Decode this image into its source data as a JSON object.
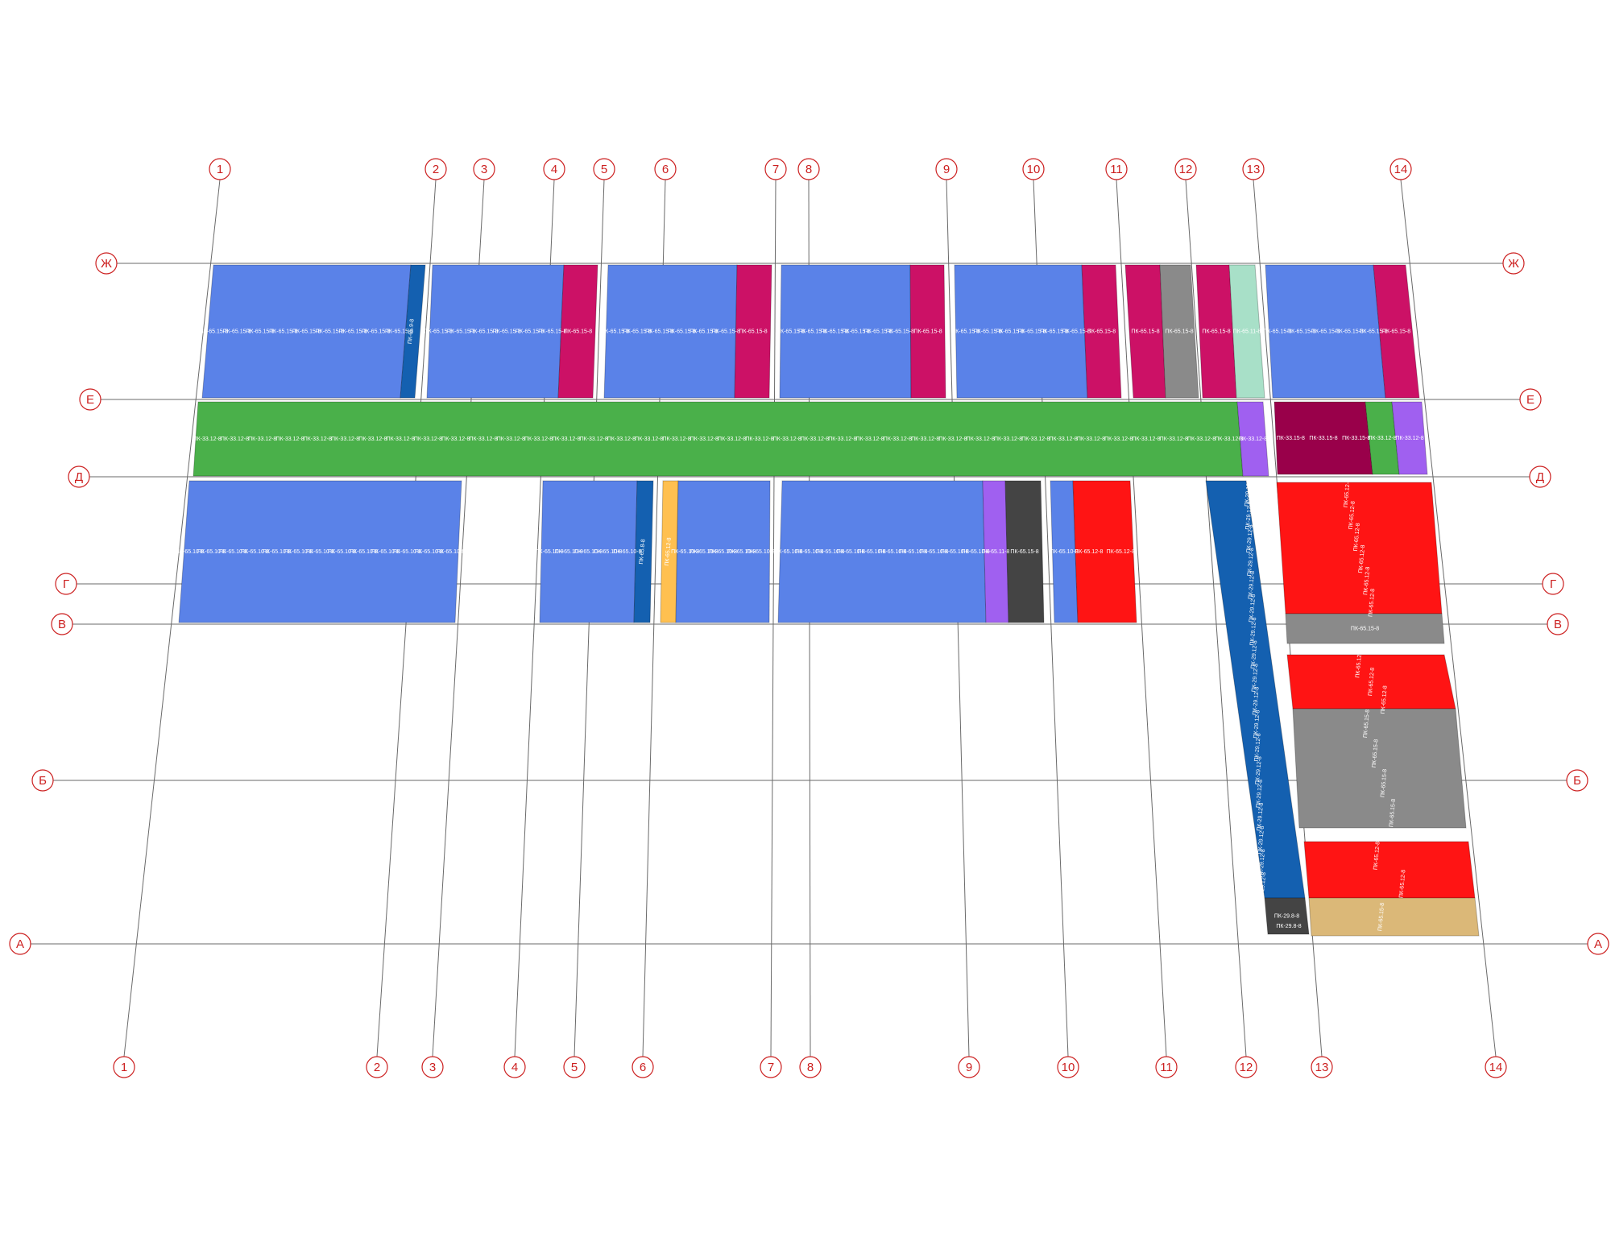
{
  "colors": {
    "grid_line": "#6a6a6a",
    "axis_marker_stroke": "#cc1f1f",
    "blue_panel": "#5a82e8",
    "dark_blue_panel": "#1460b0",
    "magenta_panel": "#cc1166",
    "green_panel": "#4ab04a",
    "purple_panel": "#a060f0",
    "maroon_panel": "#99004a",
    "gray_panel": "#8a8a8a",
    "dark_gray_panel": "#444444",
    "red_panel": "#ff1414",
    "mint_panel": "#a8e0c8",
    "yellow_panel": "#ffc050",
    "tan_panel": "#dbb878"
  },
  "axes": {
    "column_labels": [
      "1",
      "2",
      "3",
      "4",
      "5",
      "6",
      "7",
      "8",
      "9",
      "10",
      "11",
      "12",
      "13",
      "14"
    ],
    "row_labels": [
      "Ж",
      "Е",
      "Д",
      "Г",
      "В",
      "Б",
      "А"
    ]
  },
  "panel_codes": {
    "blue_top": "ПК-65.15-8",
    "blue_bottom": "ПК-65.10-8",
    "dark_blue_top": "ПК-65.9-8",
    "dark_blue_mid": "ПК-65.8-8",
    "magenta": "ПК-65.15-8",
    "green": "ПК-33.12-8",
    "purple": "ПК-33.12-8",
    "gray": "ПК-65.15-8",
    "mint": "ПК-65.11-8",
    "maroon": "ПК-33.15-8",
    "yellow": "ПК-65.12-8",
    "purple_mid": "ПК-65.11-8",
    "dark_gray_mid": "ПК-65.15-8",
    "red_mid": "ПК-65.12-8",
    "dark_blue_column": "ПК-29.12-8",
    "dark_gray_end_1": "ПК-29.8-8",
    "dark_gray_end_2": "ПК-29.8-8",
    "red_right": "ПК-65.12-8",
    "gray_right": "ПК-65.15-8",
    "tan_right": "ПК-65.15-8"
  }
}
